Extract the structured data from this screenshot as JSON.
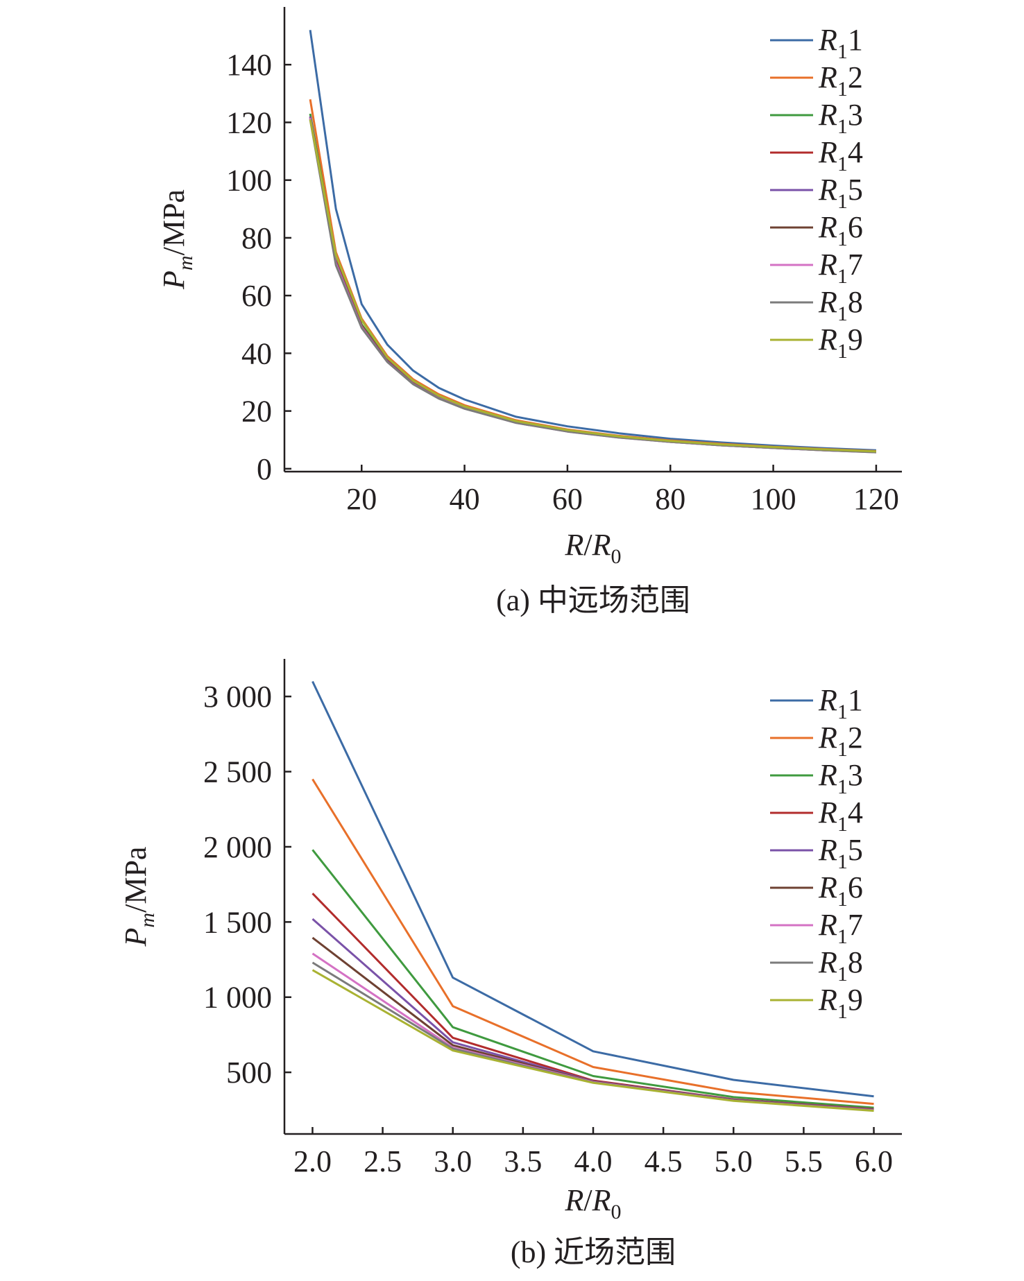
{
  "chart_data": [
    {
      "type": "line",
      "caption": "(a) 中远场范围",
      "ylabel": {
        "main": "P",
        "sub": "m",
        "rest": "/MPa"
      },
      "xlabel": {
        "main": "R",
        "slash": "/",
        "main2": "R",
        "sub2": "0"
      },
      "xlim": [
        5,
        125
      ],
      "ylim": [
        -1,
        160
      ],
      "xticks": [
        20,
        40,
        60,
        80,
        100,
        120
      ],
      "xtick_labels": [
        "20",
        "40",
        "60",
        "80",
        "100",
        "120"
      ],
      "yticks": [
        0,
        20,
        40,
        60,
        80,
        100,
        120,
        140
      ],
      "ytick_labels": [
        "0",
        "20",
        "40",
        "60",
        "80",
        "100",
        "120",
        "140"
      ],
      "legend_position": "top-right",
      "x": [
        10,
        15,
        20,
        25,
        30,
        35,
        40,
        50,
        60,
        70,
        80,
        90,
        100,
        110,
        120
      ],
      "series": [
        {
          "name": "R1",
          "sub": "1",
          "color": "#3c6ba5",
          "values": [
            152,
            90,
            57,
            43,
            34,
            28,
            24,
            18,
            14.7,
            12.3,
            10.4,
            9.1,
            8.0,
            7.1,
            6.4
          ]
        },
        {
          "name": "R2",
          "sub": "1",
          "color": "#e8702a",
          "values": [
            128,
            75,
            52,
            39,
            31,
            25.8,
            22,
            16.8,
            13.6,
            11.4,
            9.8,
            8.6,
            7.6,
            6.8,
            6.1
          ]
        },
        {
          "name": "R3",
          "sub": "1",
          "color": "#3f9a3f",
          "values": [
            123,
            73,
            50,
            38,
            30,
            25,
            21.4,
            16.3,
            13.2,
            11.1,
            9.5,
            8.3,
            7.4,
            6.6,
            5.9
          ]
        },
        {
          "name": "R4",
          "sub": "1",
          "color": "#b22c2c",
          "values": [
            122,
            72,
            49.5,
            37.5,
            29.8,
            24.7,
            21.2,
            16.1,
            13.1,
            11.0,
            9.4,
            8.2,
            7.3,
            6.5,
            5.8
          ]
        },
        {
          "name": "R5",
          "sub": "1",
          "color": "#7a52a8",
          "values": [
            122,
            71.5,
            49.2,
            37.3,
            29.6,
            24.6,
            21.0,
            16.0,
            13.0,
            10.9,
            9.4,
            8.2,
            7.3,
            6.5,
            5.8
          ]
        },
        {
          "name": "R6",
          "sub": "1",
          "color": "#6e4132",
          "values": [
            121.5,
            71,
            49,
            37.1,
            29.5,
            24.5,
            20.9,
            16.0,
            13.0,
            10.9,
            9.3,
            8.1,
            7.2,
            6.4,
            5.8
          ]
        },
        {
          "name": "R7",
          "sub": "1",
          "color": "#d472c4",
          "values": [
            121.5,
            71,
            49,
            37,
            29.4,
            24.4,
            20.9,
            15.9,
            12.9,
            10.8,
            9.3,
            8.1,
            7.2,
            6.4,
            5.7
          ]
        },
        {
          "name": "R8",
          "sub": "1",
          "color": "#7b7b7b",
          "values": [
            121,
            70.5,
            48.8,
            37,
            29.3,
            24.3,
            20.8,
            15.9,
            12.9,
            10.8,
            9.3,
            8.1,
            7.2,
            6.4,
            5.7
          ]
        },
        {
          "name": "R9",
          "sub": "1",
          "color": "#a9b232",
          "values": [
            121,
            74,
            51.5,
            38.5,
            30.5,
            25.3,
            21.6,
            16.5,
            13.4,
            11.2,
            9.6,
            8.4,
            7.5,
            6.7,
            6.0
          ]
        }
      ]
    },
    {
      "type": "line",
      "caption": "(b) 近场范围",
      "ylabel": {
        "main": "P",
        "sub": "m",
        "rest": "/MPa"
      },
      "xlabel": {
        "main": "R",
        "slash": "/",
        "main2": "R",
        "sub2": "0"
      },
      "xlim": [
        1.8,
        6.2
      ],
      "ylim": [
        90,
        3250
      ],
      "xticks": [
        2.0,
        2.5,
        3.0,
        3.5,
        4.0,
        4.5,
        5.0,
        5.5,
        6.0
      ],
      "xtick_labels": [
        "2.0",
        "2.5",
        "3.0",
        "3.5",
        "4.0",
        "4.5",
        "5.0",
        "5.5",
        "6.0"
      ],
      "yticks": [
        500,
        1000,
        1500,
        2000,
        2500,
        3000
      ],
      "ytick_labels": [
        "500",
        "1 000",
        "1 500",
        "2 000",
        "2 500",
        "3 000"
      ],
      "legend_position": "top-right",
      "x": [
        2.0,
        3.0,
        4.0,
        5.0,
        6.0
      ],
      "series": [
        {
          "name": "R1",
          "sub": "1",
          "color": "#3c6ba5",
          "values": [
            3100,
            1130,
            640,
            450,
            340
          ]
        },
        {
          "name": "R2",
          "sub": "1",
          "color": "#e8702a",
          "values": [
            2450,
            940,
            535,
            370,
            290
          ]
        },
        {
          "name": "R3",
          "sub": "1",
          "color": "#3f9a3f",
          "values": [
            1980,
            800,
            475,
            335,
            265
          ]
        },
        {
          "name": "R4",
          "sub": "1",
          "color": "#b22c2c",
          "values": [
            1690,
            730,
            445,
            320,
            255
          ]
        },
        {
          "name": "R5",
          "sub": "1",
          "color": "#7a52a8",
          "values": [
            1520,
            700,
            440,
            318,
            253
          ]
        },
        {
          "name": "R6",
          "sub": "1",
          "color": "#6e4132",
          "values": [
            1395,
            680,
            438,
            315,
            250
          ]
        },
        {
          "name": "R7",
          "sub": "1",
          "color": "#d472c4",
          "values": [
            1290,
            665,
            435,
            313,
            248
          ]
        },
        {
          "name": "R8",
          "sub": "1",
          "color": "#7b7b7b",
          "values": [
            1230,
            658,
            432,
            312,
            246
          ]
        },
        {
          "name": "R9",
          "sub": "1",
          "color": "#a9b232",
          "values": [
            1180,
            645,
            430,
            310,
            244
          ]
        }
      ]
    }
  ]
}
